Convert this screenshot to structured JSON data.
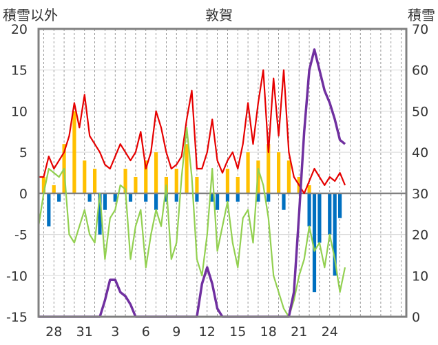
{
  "chart_data": {
    "type": "line",
    "title": "敦賀",
    "ylabel_left": "積雪以外",
    "ylabel_right": "積雪",
    "y_left_range": [
      -15,
      20
    ],
    "y_left_ticks": [
      "-15",
      "-10",
      "-5",
      "0",
      "5",
      "10",
      "15",
      "20"
    ],
    "y_right_range": [
      0,
      70
    ],
    "y_right_ticks": [
      "0",
      "10",
      "20",
      "30",
      "40",
      "50",
      "60",
      "70"
    ],
    "x_range": [
      26.5,
      62.5
    ],
    "x_ticks": [
      {
        "pos": 28,
        "label": "28"
      },
      {
        "pos": 31,
        "label": "31"
      },
      {
        "pos": 34,
        "label": "3"
      },
      {
        "pos": 37,
        "label": "6"
      },
      {
        "pos": 40,
        "label": "9"
      },
      {
        "pos": 43,
        "label": "12"
      },
      {
        "pos": 46,
        "label": "15"
      },
      {
        "pos": 49,
        "label": "18"
      },
      {
        "pos": 52,
        "label": "21"
      },
      {
        "pos": 55,
        "label": "24"
      }
    ],
    "colors": {
      "red": "#e60000",
      "green": "#92d050",
      "purple": "#7030a0",
      "orange_bar": "#ffc000",
      "blue_bar": "#0070c0",
      "gridline": "#7f7f7f",
      "zero_line": "#7f7f7f"
    },
    "series": [
      {
        "color": "red",
        "axis": "left",
        "points": [
          [
            26.5,
            2
          ],
          [
            27,
            2
          ],
          [
            27.5,
            4.5
          ],
          [
            28,
            3
          ],
          [
            28.5,
            4
          ],
          [
            29,
            5
          ],
          [
            29.5,
            7
          ],
          [
            30,
            11
          ],
          [
            30.5,
            8
          ],
          [
            31,
            12
          ],
          [
            31.5,
            7
          ],
          [
            32,
            6
          ],
          [
            32.5,
            5
          ],
          [
            33,
            3.5
          ],
          [
            33.5,
            3
          ],
          [
            34,
            4.5
          ],
          [
            34.5,
            6
          ],
          [
            35,
            5
          ],
          [
            35.5,
            4
          ],
          [
            36,
            5
          ],
          [
            36.5,
            7.5
          ],
          [
            37,
            3
          ],
          [
            37.5,
            5
          ],
          [
            38,
            10
          ],
          [
            38.5,
            8
          ],
          [
            39,
            5
          ],
          [
            39.5,
            3
          ],
          [
            40,
            3.5
          ],
          [
            40.5,
            4.5
          ],
          [
            41,
            9
          ],
          [
            41.5,
            12.5
          ],
          [
            42,
            3
          ],
          [
            42.5,
            3
          ],
          [
            43,
            5
          ],
          [
            43.5,
            9
          ],
          [
            44,
            4
          ],
          [
            44.5,
            2.5
          ],
          [
            45,
            4
          ],
          [
            45.5,
            5
          ],
          [
            46,
            3
          ],
          [
            46.5,
            6
          ],
          [
            47,
            11
          ],
          [
            47.5,
            6
          ],
          [
            48,
            11
          ],
          [
            48.5,
            15
          ],
          [
            49,
            5
          ],
          [
            49.5,
            14
          ],
          [
            50,
            7
          ],
          [
            50.5,
            15
          ],
          [
            51,
            5
          ],
          [
            51.5,
            2
          ],
          [
            52,
            1
          ],
          [
            52.5,
            0
          ],
          [
            53,
            1.5
          ],
          [
            53.5,
            3
          ],
          [
            54,
            2
          ],
          [
            54.5,
            1
          ],
          [
            55,
            2
          ],
          [
            55.5,
            1.5
          ],
          [
            56,
            2.5
          ],
          [
            56.5,
            1
          ]
        ]
      },
      {
        "color": "green",
        "axis": "left",
        "points": [
          [
            26.5,
            -4
          ],
          [
            27,
            0
          ],
          [
            27.5,
            3
          ],
          [
            28,
            2.5
          ],
          [
            28.5,
            2
          ],
          [
            29,
            3
          ],
          [
            29.5,
            -5
          ],
          [
            30,
            -6
          ],
          [
            30.5,
            -4
          ],
          [
            31,
            -2
          ],
          [
            31.5,
            -5
          ],
          [
            32,
            -6
          ],
          [
            32.5,
            0
          ],
          [
            33,
            -8
          ],
          [
            33.5,
            -3
          ],
          [
            34,
            -2
          ],
          [
            34.5,
            1
          ],
          [
            35,
            0.5
          ],
          [
            35.5,
            -8
          ],
          [
            36,
            -4
          ],
          [
            36.5,
            -2
          ],
          [
            37,
            -9
          ],
          [
            37.5,
            -5
          ],
          [
            38,
            -2
          ],
          [
            38.5,
            -4
          ],
          [
            39,
            1
          ],
          [
            39.5,
            -8
          ],
          [
            40,
            -6
          ],
          [
            40.5,
            2
          ],
          [
            41,
            8
          ],
          [
            41.5,
            2
          ],
          [
            42,
            -8
          ],
          [
            42.5,
            -10
          ],
          [
            43,
            -5
          ],
          [
            43.5,
            3
          ],
          [
            44,
            -7
          ],
          [
            44.5,
            -4
          ],
          [
            45,
            -1
          ],
          [
            45.5,
            -6
          ],
          [
            46,
            -9
          ],
          [
            46.5,
            -3
          ],
          [
            47,
            -2
          ],
          [
            47.5,
            -6
          ],
          [
            48,
            3
          ],
          [
            48.5,
            1
          ],
          [
            49,
            -3
          ],
          [
            49.5,
            -10
          ],
          [
            50,
            -12
          ],
          [
            50.5,
            -14
          ],
          [
            51,
            -15
          ],
          [
            51.5,
            -13
          ],
          [
            52,
            -10
          ],
          [
            52.5,
            -8
          ],
          [
            53,
            -4
          ],
          [
            53.5,
            -7
          ],
          [
            54,
            -6
          ],
          [
            54.5,
            -9
          ],
          [
            55,
            -5
          ],
          [
            55.5,
            -8
          ],
          [
            56,
            -12
          ],
          [
            56.5,
            -9
          ]
        ]
      },
      {
        "color": "purple",
        "axis": "right",
        "points": [
          [
            26.5,
            0
          ],
          [
            32.5,
            0
          ],
          [
            33,
            4
          ],
          [
            33.5,
            9
          ],
          [
            34,
            9
          ],
          [
            34.5,
            6
          ],
          [
            35,
            5
          ],
          [
            35.5,
            3
          ],
          [
            36,
            0
          ],
          [
            42,
            0
          ],
          [
            42.5,
            8
          ],
          [
            43,
            12
          ],
          [
            43.5,
            8
          ],
          [
            44,
            2
          ],
          [
            44.5,
            0
          ],
          [
            51,
            0
          ],
          [
            51.5,
            6
          ],
          [
            52,
            25
          ],
          [
            52.5,
            45
          ],
          [
            53,
            60
          ],
          [
            53.5,
            65
          ],
          [
            54,
            60
          ],
          [
            54.5,
            55
          ],
          [
            55,
            52
          ],
          [
            55.5,
            48
          ],
          [
            56,
            43
          ],
          [
            56.5,
            42
          ]
        ]
      },
      {
        "color": "orange_bar",
        "axis": "left",
        "type": "bar",
        "points": [
          [
            27,
            2
          ],
          [
            28,
            1
          ],
          [
            29,
            6
          ],
          [
            30,
            10
          ],
          [
            31,
            4
          ],
          [
            32,
            3
          ],
          [
            35,
            3
          ],
          [
            36,
            2
          ],
          [
            37,
            4
          ],
          [
            38,
            5
          ],
          [
            39,
            2
          ],
          [
            40,
            3
          ],
          [
            41,
            6
          ],
          [
            42,
            2
          ],
          [
            45,
            3
          ],
          [
            46,
            2
          ],
          [
            47,
            5
          ],
          [
            48,
            4
          ],
          [
            49,
            6
          ],
          [
            50,
            5
          ],
          [
            51,
            4
          ],
          [
            52,
            2
          ],
          [
            53,
            1
          ]
        ]
      },
      {
        "color": "blue_bar",
        "axis": "left",
        "type": "bar",
        "points": [
          [
            27.5,
            -4
          ],
          [
            28.5,
            -1
          ],
          [
            31.5,
            -1
          ],
          [
            32.5,
            -5
          ],
          [
            33,
            -2
          ],
          [
            34,
            -1
          ],
          [
            35.5,
            -1
          ],
          [
            37,
            -1
          ],
          [
            38,
            -2
          ],
          [
            39,
            -1
          ],
          [
            40,
            -1
          ],
          [
            42,
            -1
          ],
          [
            43.5,
            -1
          ],
          [
            44,
            -2
          ],
          [
            45,
            -1
          ],
          [
            46,
            -1
          ],
          [
            48,
            -1
          ],
          [
            49,
            -1
          ],
          [
            50.5,
            -2
          ],
          [
            53,
            -4
          ],
          [
            53.5,
            -12
          ],
          [
            54,
            -6
          ],
          [
            55,
            -5
          ],
          [
            55.5,
            -10
          ],
          [
            56,
            -3
          ]
        ]
      }
    ]
  }
}
